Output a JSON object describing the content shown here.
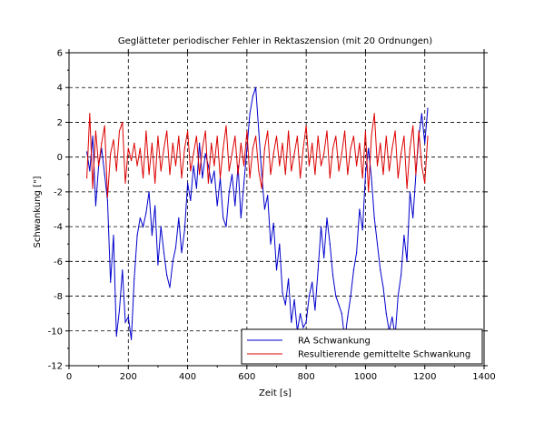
{
  "chart_data": {
    "type": "line",
    "title": "Geglätteter periodischer Fehler in Rektaszension (mit 20 Ordnungen)",
    "xlabel": "Zeit [s]",
    "ylabel": "Schwankung [\"]",
    "xlim": [
      0,
      1400
    ],
    "ylim": [
      -12,
      6
    ],
    "x_ticks": [
      0,
      200,
      400,
      600,
      800,
      1000,
      1200,
      1400
    ],
    "y_ticks": [
      -12,
      -10,
      -8,
      -6,
      -4,
      -2,
      0,
      2,
      4,
      6
    ],
    "grid": true,
    "grid_style": "dashed",
    "legend_position": "bottom-right",
    "series": [
      {
        "name": "RA Schwankung",
        "color": "#0000cc",
        "x": [
          60,
          70,
          80,
          90,
          100,
          110,
          120,
          130,
          140,
          150,
          160,
          170,
          180,
          190,
          200,
          210,
          220,
          230,
          240,
          250,
          260,
          270,
          280,
          290,
          300,
          310,
          320,
          330,
          340,
          350,
          360,
          370,
          380,
          390,
          400,
          410,
          420,
          430,
          440,
          450,
          460,
          470,
          480,
          490,
          500,
          510,
          520,
          530,
          540,
          550,
          560,
          570,
          580,
          590,
          600,
          610,
          620,
          630,
          640,
          650,
          660,
          670,
          680,
          690,
          700,
          710,
          720,
          730,
          740,
          750,
          760,
          770,
          780,
          790,
          800,
          810,
          820,
          830,
          840,
          850,
          860,
          870,
          880,
          890,
          900,
          910,
          920,
          930,
          940,
          950,
          960,
          970,
          980,
          990,
          1000,
          1010,
          1020,
          1030,
          1040,
          1050,
          1060,
          1070,
          1080,
          1090,
          1100,
          1110,
          1120,
          1130,
          1140,
          1150,
          1160,
          1170,
          1180,
          1190,
          1200,
          1210
        ],
        "values": [
          0.3,
          -0.8,
          1.2,
          -2.8,
          -0.5,
          0.5,
          -1.0,
          -2.5,
          -7.2,
          -4.5,
          -10.3,
          -8.8,
          -6.5,
          -9.5,
          -9.2,
          -10.5,
          -7.0,
          -4.5,
          -3.5,
          -4.0,
          -3.2,
          -2.0,
          -4.5,
          -2.8,
          -6.2,
          -4.0,
          -5.5,
          -6.8,
          -7.5,
          -6.0,
          -5.2,
          -3.5,
          -5.5,
          -4.2,
          -1.5,
          -2.5,
          -0.5,
          -1.8,
          0.8,
          -1.2,
          0.2,
          -0.5,
          -1.5,
          -0.8,
          -2.8,
          -1.2,
          -3.5,
          -4.0,
          -2.0,
          -1.0,
          -2.8,
          -0.5,
          -3.5,
          -1.5,
          0.5,
          2.5,
          3.5,
          4.0,
          1.5,
          -1.0,
          -3.0,
          -2.2,
          -5.0,
          -3.8,
          -6.5,
          -5.0,
          -7.8,
          -8.5,
          -7.0,
          -9.5,
          -8.2,
          -10.0,
          -9.0,
          -9.8,
          -9.5,
          -8.0,
          -7.2,
          -8.8,
          -6.5,
          -4.0,
          -5.8,
          -3.5,
          -5.0,
          -6.8,
          -8.0,
          -8.5,
          -9.0,
          -10.5,
          -9.2,
          -8.0,
          -6.5,
          -5.5,
          -3.0,
          -4.2,
          -1.0,
          0.5,
          -1.2,
          -3.5,
          -5.0,
          -6.5,
          -7.5,
          -9.0,
          -10.0,
          -9.2,
          -10.3,
          -8.0,
          -6.8,
          -4.5,
          -6.0,
          -2.0,
          -3.5,
          -1.0,
          1.2,
          2.5,
          0.8,
          2.8
        ]
      },
      {
        "name": "Resultierende gemittelte Schwankung",
        "color": "#dd0000",
        "x": [
          60,
          70,
          80,
          90,
          100,
          110,
          120,
          130,
          140,
          150,
          160,
          170,
          180,
          190,
          200,
          210,
          220,
          230,
          240,
          250,
          260,
          270,
          280,
          290,
          300,
          310,
          320,
          330,
          340,
          350,
          360,
          370,
          380,
          390,
          400,
          410,
          420,
          430,
          440,
          450,
          460,
          470,
          480,
          490,
          500,
          510,
          520,
          530,
          540,
          550,
          560,
          570,
          580,
          590,
          600,
          610,
          620,
          630,
          640,
          650,
          660,
          670,
          680,
          690,
          700,
          710,
          720,
          730,
          740,
          750,
          760,
          770,
          780,
          790,
          800,
          810,
          820,
          830,
          840,
          850,
          860,
          870,
          880,
          890,
          900,
          910,
          920,
          930,
          940,
          950,
          960,
          970,
          980,
          990,
          1000,
          1010,
          1020,
          1030,
          1040,
          1050,
          1060,
          1070,
          1080,
          1090,
          1100,
          1110,
          1120,
          1130,
          1140,
          1150,
          1160,
          1170,
          1180,
          1190,
          1200,
          1210
        ],
        "values": [
          -1.2,
          2.5,
          -1.8,
          1.5,
          -0.5,
          0.8,
          1.8,
          -2.3,
          0.2,
          1.0,
          -0.8,
          1.5,
          2.0,
          -1.5,
          0.5,
          -0.2,
          0.8,
          -0.5,
          0.5,
          -1.2,
          1.5,
          -1.0,
          0.8,
          -1.5,
          1.2,
          -0.8,
          0.5,
          1.5,
          -1.0,
          0.8,
          -0.5,
          1.2,
          -1.2,
          0.5,
          1.5,
          -0.8,
          0.2,
          1.2,
          -1.0,
          0.5,
          1.5,
          -1.5,
          0.8,
          -0.5,
          1.2,
          -1.2,
          0.5,
          1.8,
          -0.8,
          0.2,
          1.2,
          -1.0,
          0.8,
          -0.5,
          1.5,
          -1.2,
          0.5,
          1.2,
          -0.8,
          -1.8,
          0.5,
          1.5,
          -1.0,
          0.2,
          1.2,
          -0.5,
          0.8,
          -1.0,
          1.5,
          -0.8,
          0.2,
          1.2,
          -1.2,
          0.5,
          1.8,
          -0.5,
          0.8,
          -1.0,
          1.2,
          -0.5,
          0.2,
          1.5,
          -1.2,
          0.5,
          1.2,
          -0.8,
          0.2,
          1.5,
          -1.0,
          0.5,
          1.2,
          -0.5,
          0.8,
          -1.2,
          1.5,
          -2.0,
          1.2,
          2.5,
          -0.5,
          0.8,
          -1.0,
          1.2,
          -0.8,
          0.5,
          1.5,
          -1.2,
          0.2,
          1.2,
          -1.8,
          0.5,
          1.8,
          -1.0,
          1.5,
          -0.5,
          -1.5,
          1.2
        ]
      }
    ]
  }
}
